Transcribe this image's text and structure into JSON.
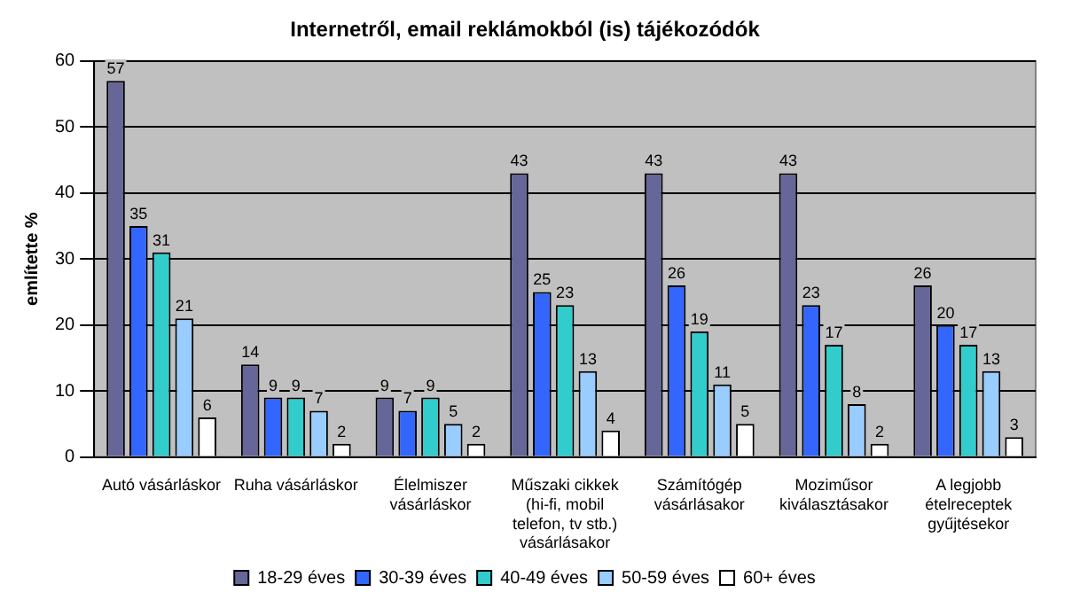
{
  "chart_data": {
    "type": "bar",
    "title": "Internetről, email reklámokból (is) tájékozódók",
    "ylabel": "említette %",
    "categories": [
      "Autó vásárláskor",
      "Ruha vásárláskor",
      "Élelmiszer vásárláskor",
      "Műszaki cikkek (hi-fi, mobil telefon, tv stb.) vásárlásakor",
      "Számítógép vásárlásakor",
      "Moziműsor kiválasztásakor",
      "A legjobb ételreceptek gyűjtésekor"
    ],
    "series": [
      {
        "name": "18-29 éves",
        "color": "#666699",
        "values": [
          57,
          14,
          9,
          43,
          43,
          43,
          26
        ]
      },
      {
        "name": "30-39 éves",
        "color": "#3366ff",
        "values": [
          35,
          9,
          7,
          25,
          26,
          23,
          20
        ]
      },
      {
        "name": "40-49 éves",
        "color": "#33cccc",
        "values": [
          31,
          9,
          9,
          23,
          19,
          17,
          17
        ]
      },
      {
        "name": "50-59 éves",
        "color": "#99ccff",
        "values": [
          21,
          7,
          5,
          13,
          11,
          8,
          13
        ]
      },
      {
        "name": "60+ éves",
        "color": "#ffffff",
        "values": [
          6,
          2,
          2,
          4,
          5,
          2,
          3
        ]
      }
    ],
    "ylim": [
      0,
      60
    ],
    "yticks": [
      0,
      10,
      20,
      30,
      40,
      50,
      60
    ],
    "grid": "y",
    "legend": "bottom",
    "data_labels": true
  }
}
